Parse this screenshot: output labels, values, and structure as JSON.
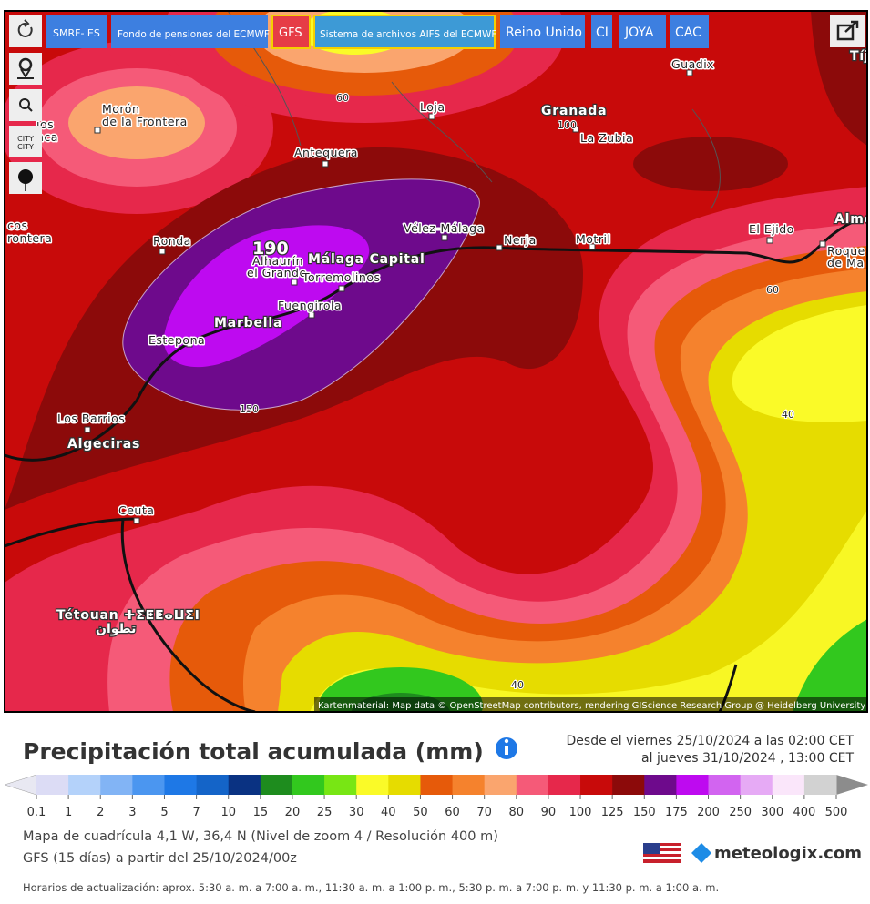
{
  "toolbar": {
    "buttons": [
      "SMRF- ES",
      "Fondo de pensiones del ECMWF",
      "GFS",
      "Sistema de archivos AIFS del ECMWF",
      "Reino Unido",
      "CI",
      "JOYA",
      "CAC"
    ],
    "city_icon": [
      "CITY",
      "CITY"
    ]
  },
  "map": {
    "places": [
      "Morón",
      "de la Frontera",
      "Antequera",
      "Loja",
      "Granada",
      "La Zubia",
      "Guadix",
      "Vélez-Málaga",
      "Nerja",
      "Motril",
      "El Ejido",
      "Alme",
      "Roque",
      "de Ma",
      "Ronda",
      "Alhaurín",
      "el Grande",
      "Málaga Capital",
      "Torremolinos",
      "Fuengirola",
      "Marbella",
      "Estepona",
      "Los Barrios",
      "Algeciras",
      "Ceuta",
      "Tétouan ⵜⵉⵟⵟⴰⵡⵉⵏ",
      "تطوان",
      "Tíj",
      "ios",
      "nca",
      "cos",
      "rontera"
    ],
    "contour_labels": [
      "190",
      "60",
      "100",
      "150",
      "60",
      "40",
      "40"
    ],
    "attribution": "Kartenmaterial: Map data © OpenStreetMap contributors, rendering GIScience Research Group @ Heidelberg University"
  },
  "panel": {
    "title": "Precipitación total acumulada (mm)",
    "date_from": "Desde el viernes 25/10/2024 a  las 02:00 CET",
    "date_to": "al jueves 31/10/2024 ,  13:00 CET",
    "legend": {
      "colors": [
        "#dcdcf5",
        "#b4d2fa",
        "#82b4f5",
        "#4b96f0",
        "#1e78e6",
        "#1464c8",
        "#0a3282",
        "#1e8c1e",
        "#32c81e",
        "#78e614",
        "#fafa28",
        "#e6dc00",
        "#e65a0a",
        "#f5822d",
        "#faa56e",
        "#f55a78",
        "#e6284b",
        "#c80a0a",
        "#8c0a0a",
        "#6e0a8c",
        "#be0af0",
        "#d264f0",
        "#e6aaf5",
        "#fae6fa",
        "#d2d2d2"
      ],
      "labels": [
        "0.1",
        "1",
        "2",
        "3",
        "5",
        "7",
        "10",
        "15",
        "20",
        "25",
        "30",
        "40",
        "50",
        "60",
        "70",
        "80",
        "90",
        "100",
        "125",
        "150",
        "175",
        "200",
        "250",
        "300",
        "400",
        "500"
      ]
    },
    "grid_info": "Mapa de cuadrícula 4,1 W, 36,4 N (Nivel de zoom 4 / Resolución 400 m)",
    "model_info": "GFS (15 días) a partir del 25/10/2024/00z",
    "brand": "meteologix.com",
    "update_times": "Horarios de actualización: aprox. 5:30 a. m. a 7:00 a. m., 11:30 a. m. a 1:00 p. m., 5:30 p. m. a 7:00 p. m. y 11:30 p. m. a 1:00 a. m."
  }
}
